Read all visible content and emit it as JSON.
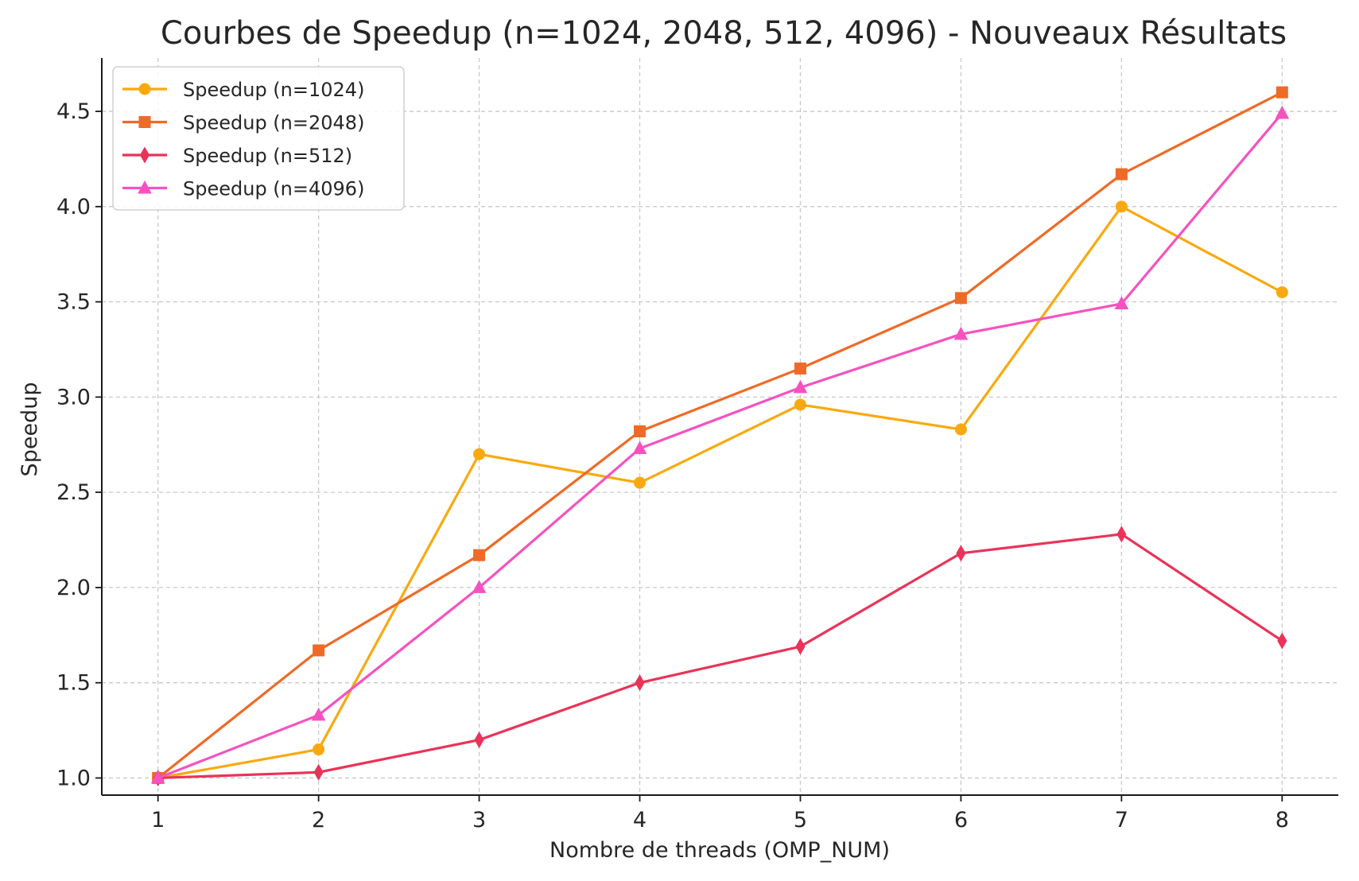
{
  "chart_data": {
    "type": "line",
    "title": "Courbes de Speedup (n=1024, 2048, 512, 4096) - Nouveaux Résultats",
    "xlabel": "Nombre de threads (OMP_NUM)",
    "ylabel": "Speedup",
    "x": [
      1,
      2,
      3,
      4,
      5,
      6,
      7,
      8
    ],
    "xticks": [
      1,
      2,
      3,
      4,
      5,
      6,
      7,
      8
    ],
    "yticks": [
      1.0,
      1.5,
      2.0,
      2.5,
      3.0,
      3.5,
      4.0,
      4.5
    ],
    "ytick_labels": [
      "1.0",
      "1.5",
      "2.0",
      "2.5",
      "3.0",
      "3.5",
      "4.0",
      "4.5"
    ],
    "xlim": [
      0.65,
      8.35
    ],
    "ylim": [
      0.91,
      4.78
    ],
    "grid": true,
    "legend_position": "top-left",
    "series": [
      {
        "name": "Speedup (n=1024)",
        "color": "#f9a90f",
        "marker": "circle",
        "values": [
          1.0,
          1.15,
          2.7,
          2.55,
          2.96,
          2.83,
          4.0,
          3.55
        ]
      },
      {
        "name": "Speedup (n=2048)",
        "color": "#ef6a26",
        "marker": "square",
        "values": [
          1.0,
          1.67,
          2.17,
          2.82,
          3.15,
          3.52,
          4.17,
          4.6
        ]
      },
      {
        "name": "Speedup (n=512)",
        "color": "#ea3358",
        "marker": "diamond",
        "values": [
          1.0,
          1.03,
          1.2,
          1.5,
          1.69,
          2.18,
          2.28,
          1.72
        ]
      },
      {
        "name": "Speedup (n=4096)",
        "color": "#f552c0",
        "marker": "triangle",
        "values": [
          1.0,
          1.33,
          2.0,
          2.73,
          3.05,
          3.33,
          3.49,
          4.49
        ]
      }
    ]
  }
}
